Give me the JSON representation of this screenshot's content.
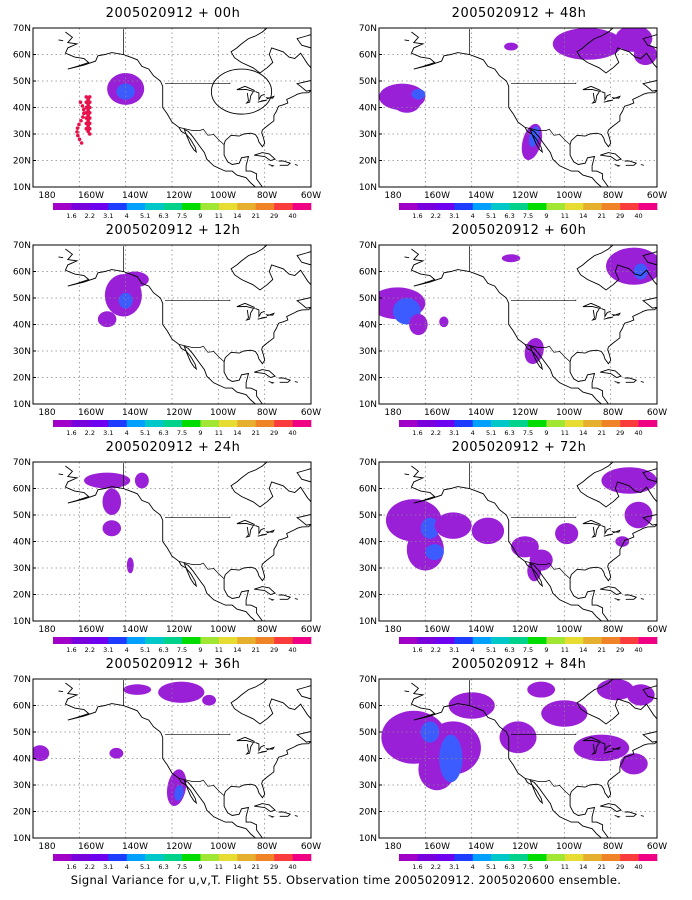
{
  "caption": "Signal Variance for u,v,T. Flight 55. Observation time 2005020912. 2005020600 ensemble.",
  "lat_labels": [
    "70N",
    "60N",
    "50N",
    "40N",
    "30N",
    "20N",
    "10N"
  ],
  "lon_labels": [
    "180",
    "160W",
    "140W",
    "120W",
    "100W",
    "80W",
    "60W"
  ],
  "scale": {
    "labels": [
      "1.6",
      "2.2",
      "3.1",
      "4",
      "5.1",
      "6.3",
      "7.5",
      "9",
      "11",
      "14",
      "21",
      "29",
      "40"
    ],
    "colors": [
      "#a000c8",
      "#7800dc",
      "#6e00f0",
      "#1e3cff",
      "#00a0ff",
      "#00c8c8",
      "#00d28c",
      "#00dc00",
      "#a0e632",
      "#e6dc32",
      "#e6af2d",
      "#f08228",
      "#fa3c3c",
      "#f00082"
    ]
  },
  "colors": {
    "coast": "#000000",
    "grid": "#888888",
    "obs_dots": "#e8104a"
  },
  "panels": [
    {
      "title": "2005020912 + 00h"
    },
    {
      "title": "2005020912 + 48h"
    },
    {
      "title": "2005020912 + 12h"
    },
    {
      "title": "2005020912 + 60h"
    },
    {
      "title": "2005020912 + 24h"
    },
    {
      "title": "2005020912 + 72h"
    },
    {
      "title": "2005020912 + 36h"
    },
    {
      "title": "2005020912 + 84h"
    }
  ]
}
